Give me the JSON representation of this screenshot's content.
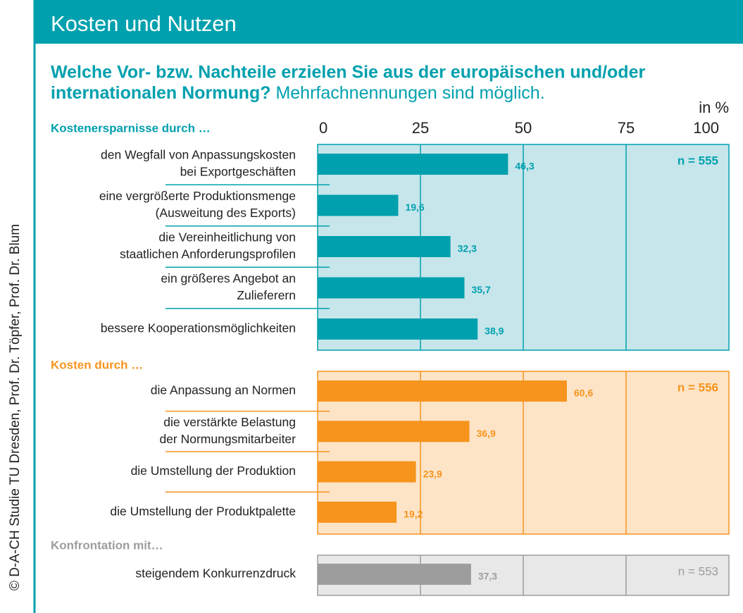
{
  "chart_data": {
    "type": "bar",
    "title": "Kosten und Nutzen",
    "question": [
      "Welche Vor- bzw. Nachteile erzielen Sie aus der europäischen und/oder",
      "internationalen Normung?"
    ],
    "note": "Mehrfachnennungen sind möglich.",
    "unit_label": "in %",
    "credit": "© D-A-CH Studie TU Dresden, Prof. Dr. Töpfer, Prof. Dr. Blum",
    "xlim": [
      0,
      100
    ],
    "xticks": [
      0,
      25,
      50,
      75,
      100
    ],
    "groups": [
      {
        "name": "Kostenersparnisse durch …",
        "n_label": "n = 555",
        "color": "#00a0ae",
        "background": "#c6e6eb",
        "categories": [
          [
            "den Wegfall von Anpassungskosten",
            "bei Exportgeschäften"
          ],
          [
            "eine vergrößerte Produktionsmenge",
            "(Ausweitung des Exports)"
          ],
          [
            "die Vereinheitlichung von",
            "staatlichen Anforderungsprofilen"
          ],
          [
            "ein größeres Angebot an",
            "Zulieferern"
          ],
          [
            "bessere Kooperationsmöglichkeiten"
          ]
        ],
        "values": [
          46.3,
          19.6,
          32.3,
          35.7,
          38.9
        ],
        "value_labels": [
          "46,3",
          "19,6",
          "32,3",
          "35,7",
          "38,9"
        ]
      },
      {
        "name": "Kosten durch …",
        "n_label": "n = 556",
        "color": "#f7941d",
        "background": "#fde4c7",
        "categories": [
          [
            "die Anpassung an Normen"
          ],
          [
            "die verstärkte Belastung",
            "der Normungsmitarbeiter"
          ],
          [
            "die Umstellung der Produktion"
          ],
          [
            "die Umstellung der Produktpalette"
          ]
        ],
        "values": [
          60.6,
          36.9,
          23.9,
          19.2
        ],
        "value_labels": [
          "60,6",
          "36,9",
          "23,9",
          "19,2"
        ]
      },
      {
        "name": "Konfrontation mit…",
        "n_label": "n = 553",
        "color": "#9d9d9e",
        "background": "#e8e8e8",
        "categories": [
          [
            "steigendem Konkurrenzdruck"
          ]
        ],
        "values": [
          37.3
        ],
        "value_labels": [
          "37,3"
        ]
      }
    ]
  }
}
